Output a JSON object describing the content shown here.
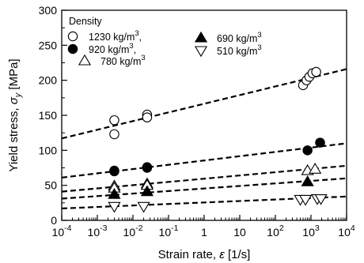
{
  "chart_data": {
    "type": "scatter",
    "xlabel": "Strain rate, ",
    "xlabel_symbol": "ε",
    "xlabel_unit": " [1/s]",
    "ylabel": "Yield stress, ",
    "ylabel_symbol": "σ",
    "ylabel_sub": "y",
    "ylabel_unit": " [MPa]",
    "x_scale": "log",
    "xlim": [
      0.0001,
      10000
    ],
    "ylim": [
      0,
      300
    ],
    "x_ticks": [
      {
        "value": 0.0001,
        "base": "10",
        "exp": "-4"
      },
      {
        "value": 0.001,
        "base": "10",
        "exp": "-3"
      },
      {
        "value": 0.01,
        "base": "10",
        "exp": "-2"
      },
      {
        "value": 0.1,
        "base": "10",
        "exp": "-1"
      },
      {
        "value": 1,
        "base": "1",
        "exp": ""
      },
      {
        "value": 10,
        "base": "10",
        "exp": ""
      },
      {
        "value": 100,
        "base": "10",
        "exp": "2"
      },
      {
        "value": 1000,
        "base": "10",
        "exp": "3"
      },
      {
        "value": 10000,
        "base": "10",
        "exp": "4"
      }
    ],
    "y_ticks": [
      "0",
      "50",
      "100",
      "150",
      "200",
      "250",
      "300"
    ],
    "legend": {
      "title": "Density",
      "placement": "top-left",
      "unit_base": " kg/m",
      "unit_exp": "3"
    },
    "series": [
      {
        "name": "1230",
        "comma": ",",
        "marker": "circle-open",
        "points": [
          [
            0.003,
            143
          ],
          [
            0.003,
            123
          ],
          [
            0.025,
            151
          ],
          [
            0.025,
            147
          ],
          [
            600,
            193
          ],
          [
            750,
            200
          ],
          [
            900,
            205
          ],
          [
            1100,
            210
          ],
          [
            1400,
            212
          ]
        ],
        "fit": [
          [
            0.0001,
            117
          ],
          [
            10000,
            216
          ]
        ]
      },
      {
        "name": "920",
        "comma": ",",
        "marker": "circle-filled",
        "points": [
          [
            0.003,
            71
          ],
          [
            0.003,
            70
          ],
          [
            0.025,
            76
          ],
          [
            0.025,
            75
          ],
          [
            800,
            100
          ],
          [
            1800,
            111
          ]
        ],
        "fit": [
          [
            0.0001,
            61
          ],
          [
            10000,
            110
          ]
        ]
      },
      {
        "name": "780",
        "comma": "",
        "marker": "triangle-open",
        "points": [
          [
            0.003,
            49
          ],
          [
            0.003,
            46
          ],
          [
            0.025,
            52
          ],
          [
            0.025,
            50
          ],
          [
            800,
            71
          ],
          [
            1300,
            73
          ]
        ],
        "fit": [
          [
            0.0001,
            41
          ],
          [
            10000,
            78
          ]
        ]
      },
      {
        "name": "690",
        "comma": "",
        "marker": "triangle-filled",
        "points": [
          [
            0.003,
            37
          ],
          [
            0.025,
            41
          ],
          [
            800,
            55
          ]
        ],
        "fit": [
          [
            0.0001,
            31
          ],
          [
            10000,
            60
          ]
        ]
      },
      {
        "name": "510",
        "comma": "",
        "marker": "triangle-down-open",
        "points": [
          [
            0.003,
            20
          ],
          [
            0.02,
            20
          ],
          [
            500,
            30
          ],
          [
            700,
            30
          ],
          [
            1500,
            31
          ],
          [
            1900,
            31
          ]
        ],
        "fit": [
          [
            0.0001,
            17
          ],
          [
            10000,
            34
          ]
        ]
      }
    ]
  }
}
